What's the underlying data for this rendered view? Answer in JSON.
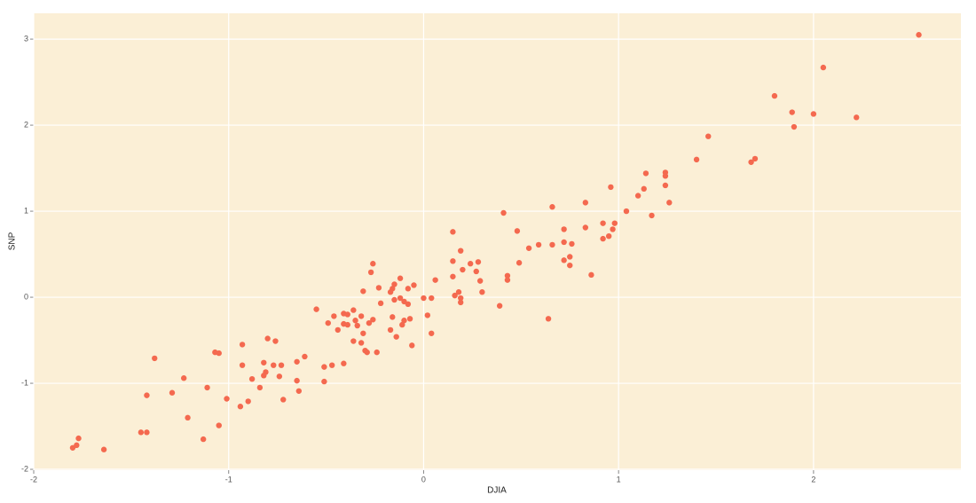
{
  "chart_data": {
    "type": "scatter",
    "x_label": "DJIA",
    "y_label": "SNP",
    "xlim": [
      -2.0,
      2.756
    ],
    "ylim": [
      -2.01,
      3.3
    ],
    "xticks": [
      -2,
      -1,
      0,
      1,
      2
    ],
    "yticks": [
      -2,
      -1,
      0,
      1,
      2,
      3
    ],
    "grid": true,
    "background": "#fbefd6",
    "grid_color": "#ffffff",
    "series": [
      {
        "color": "#f4694f",
        "x": [
          2.54,
          2.05,
          1.8,
          1.89,
          1.9,
          2.0,
          2.22,
          1.46,
          1.4,
          1.7,
          1.68,
          1.24,
          1.24,
          1.14,
          1.13,
          1.24,
          1.1,
          0.96,
          1.26,
          1.04,
          1.17,
          0.83,
          0.66,
          0.41,
          0.98,
          0.92,
          0.97,
          0.72,
          0.83,
          0.48,
          0.15,
          0.95,
          0.92,
          0.72,
          0.76,
          0.66,
          0.59,
          0.54,
          0.19,
          0.75,
          0.72,
          0.75,
          0.49,
          0.28,
          0.15,
          0.24,
          -0.26,
          0.2,
          0.27,
          -0.27,
          0.86,
          0.43,
          0.43,
          0.15,
          0.06,
          0.29,
          -0.12,
          -0.15,
          -0.05,
          -0.08,
          -0.16,
          -0.17,
          -0.23,
          -0.31,
          0.3,
          0.18,
          0.16,
          0.0,
          0.04,
          0.19,
          0.19,
          -0.12,
          -0.15,
          -0.1,
          -0.08,
          -0.22,
          0.39,
          -0.55,
          -0.36,
          0.02,
          -0.41,
          -0.39,
          -0.46,
          -0.32,
          -0.26,
          -0.16,
          -0.07,
          -0.1,
          0.64,
          -0.35,
          -0.28,
          -0.49,
          -0.41,
          -0.11,
          -0.39,
          -0.34,
          -0.17,
          -0.44,
          -0.31,
          0.04,
          -0.14,
          -0.8,
          -0.76,
          -0.36,
          -0.32,
          -0.93,
          -0.06,
          -0.3,
          -0.29,
          -0.24,
          -1.07,
          -1.05,
          -0.61,
          -1.38,
          -0.65,
          -0.82,
          -0.41,
          -0.47,
          -0.51,
          -0.77,
          -0.73,
          -0.93,
          -0.81,
          -0.82,
          -0.74,
          -1.23,
          -0.88,
          -0.51,
          -0.65,
          -0.84,
          -1.11,
          -1.29,
          -1.42,
          -0.64,
          -1.01,
          -0.72,
          -0.9,
          -0.94,
          -1.21,
          -1.05,
          -1.45,
          -1.42,
          -1.13,
          -1.77,
          -1.78,
          -1.8,
          -1.64
        ],
        "values": [
          3.05,
          2.67,
          2.34,
          2.15,
          1.98,
          2.13,
          2.09,
          1.87,
          1.6,
          1.61,
          1.57,
          1.45,
          1.41,
          1.44,
          1.26,
          1.3,
          1.18,
          1.28,
          1.1,
          1.0,
          0.95,
          1.1,
          1.05,
          0.98,
          0.86,
          0.86,
          0.79,
          0.79,
          0.81,
          0.77,
          0.76,
          0.71,
          0.68,
          0.64,
          0.62,
          0.61,
          0.61,
          0.57,
          0.54,
          0.47,
          0.43,
          0.37,
          0.4,
          0.41,
          0.42,
          0.39,
          0.39,
          0.32,
          0.3,
          0.29,
          0.26,
          0.25,
          0.2,
          0.24,
          0.2,
          0.19,
          0.22,
          0.15,
          0.14,
          0.1,
          0.1,
          0.06,
          0.11,
          0.07,
          0.06,
          0.06,
          0.02,
          -0.01,
          -0.01,
          -0.01,
          -0.06,
          -0.01,
          -0.03,
          -0.05,
          -0.08,
          -0.07,
          -0.1,
          -0.14,
          -0.15,
          -0.21,
          -0.19,
          -0.2,
          -0.22,
          -0.22,
          -0.26,
          -0.23,
          -0.25,
          -0.27,
          -0.25,
          -0.27,
          -0.3,
          -0.3,
          -0.31,
          -0.32,
          -0.32,
          -0.33,
          -0.38,
          -0.38,
          -0.42,
          -0.42,
          -0.46,
          -0.48,
          -0.51,
          -0.51,
          -0.53,
          -0.55,
          -0.56,
          -0.62,
          -0.64,
          -0.64,
          -0.64,
          -0.65,
          -0.69,
          -0.71,
          -0.75,
          -0.76,
          -0.77,
          -0.79,
          -0.81,
          -0.79,
          -0.79,
          -0.79,
          -0.87,
          -0.91,
          -0.92,
          -0.94,
          -0.95,
          -0.98,
          -0.97,
          -1.05,
          -1.05,
          -1.11,
          -1.14,
          -1.09,
          -1.18,
          -1.19,
          -1.21,
          -1.27,
          -1.4,
          -1.49,
          -1.57,
          -1.57,
          -1.65,
          -1.64,
          -1.72,
          -1.75,
          -1.77
        ]
      }
    ]
  }
}
